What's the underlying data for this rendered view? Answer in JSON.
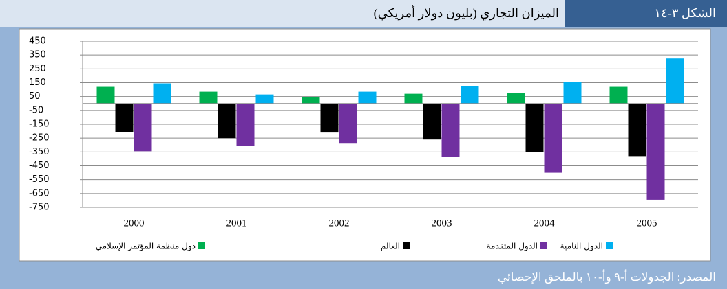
{
  "figure_label": "الشكل ٣-١٤",
  "source": "المصدر: الجدولات أ-٩ وأ-١٠ بالملحق الإحصائي",
  "chart_data": {
    "type": "bar",
    "title": "الميزان التجاري (بليون دولار أمريكي)",
    "categories": [
      "2000",
      "2001",
      "2002",
      "2003",
      "2004",
      "2005"
    ],
    "series": [
      {
        "name": "دول منظمة المؤتمر الإسلامي",
        "color": "#00b050",
        "values": [
          120,
          85,
          45,
          70,
          75,
          120
        ]
      },
      {
        "name": "العالم",
        "color": "#000000",
        "values": [
          -205,
          -250,
          -210,
          -260,
          -350,
          -380
        ]
      },
      {
        "name": "الدول المتقدمة",
        "color": "#7030a0",
        "values": [
          -345,
          -305,
          -290,
          -385,
          -500,
          -695
        ]
      },
      {
        "name": "الدول النامية",
        "color": "#00b0f0",
        "values": [
          145,
          65,
          85,
          125,
          155,
          325
        ]
      }
    ],
    "ylim": [
      -750,
      450
    ],
    "yticks": [
      450,
      350,
      250,
      150,
      50,
      -50,
      -150,
      -250,
      -350,
      -450,
      -550,
      -650,
      -750
    ],
    "grid": true,
    "legend": "bottom"
  }
}
